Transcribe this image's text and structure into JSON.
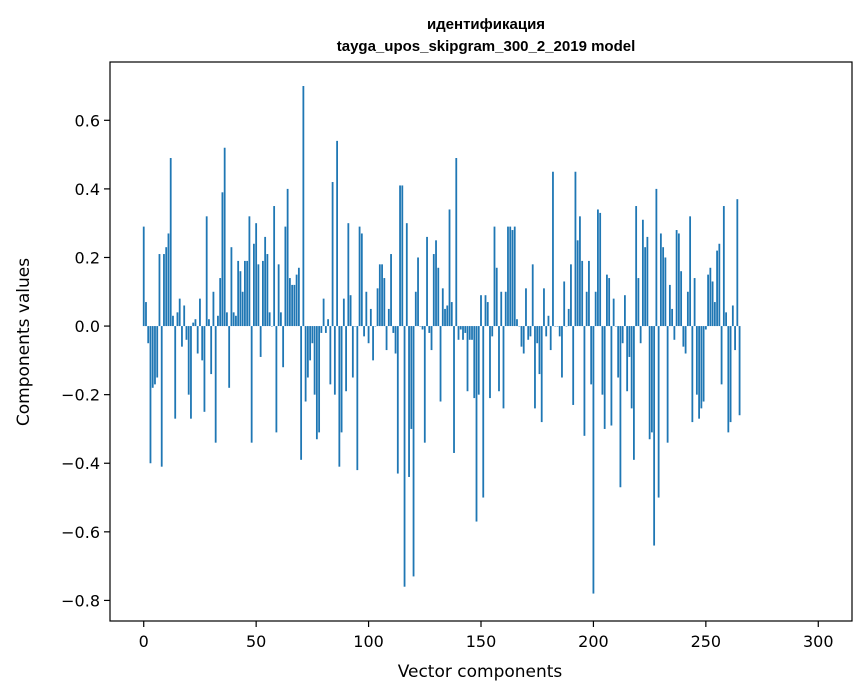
{
  "chart_data": {
    "type": "bar",
    "title": "идентификация",
    "subtitle": "tayga_upos_skipgram_300_2_2019 model",
    "xlabel": "Vector components",
    "ylabel": "Components values",
    "xlim": [
      -15,
      315
    ],
    "ylim": [
      -0.86,
      0.77
    ],
    "xticks": [
      0,
      50,
      100,
      150,
      200,
      250,
      300
    ],
    "xtick_labels": [
      "0",
      "50",
      "100",
      "150",
      "200",
      "250",
      "300"
    ],
    "yticks": [
      0.6,
      0.4,
      0.2,
      0.0,
      -0.2,
      -0.4,
      -0.6,
      -0.8
    ],
    "ytick_labels": [
      "0.6",
      "0.4",
      "0.2",
      "0.0",
      "−0.2",
      "−0.4",
      "−0.6",
      "−0.8"
    ],
    "grid": false,
    "bar_color": "#1f77b4",
    "x_start": 0,
    "values": [
      0.29,
      0.07,
      -0.05,
      -0.4,
      -0.18,
      -0.17,
      -0.15,
      0.21,
      -0.41,
      0.21,
      0.23,
      0.27,
      0.49,
      0.03,
      -0.27,
      0.04,
      0.08,
      -0.06,
      0.06,
      -0.04,
      -0.2,
      -0.27,
      0.01,
      0.02,
      -0.08,
      0.08,
      -0.1,
      -0.25,
      0.32,
      0.02,
      -0.14,
      0.1,
      -0.34,
      0.03,
      0.14,
      0.39,
      0.52,
      0.04,
      -0.18,
      0.23,
      0.04,
      0.03,
      0.19,
      0.16,
      0.1,
      0.19,
      0.19,
      0.32,
      -0.34,
      0.24,
      0.3,
      0.18,
      -0.09,
      0.19,
      0.26,
      0.21,
      0.04,
      0.0,
      0.35,
      -0.31,
      0.18,
      0.04,
      -0.12,
      0.29,
      0.4,
      0.14,
      0.12,
      0.12,
      0.15,
      0.17,
      -0.39,
      0.7,
      -0.22,
      -0.15,
      -0.1,
      -0.05,
      -0.2,
      -0.33,
      -0.31,
      -0.02,
      0.08,
      -0.02,
      0.02,
      -0.17,
      0.42,
      -0.2,
      0.54,
      -0.41,
      -0.31,
      0.08,
      -0.19,
      0.3,
      0.09,
      -0.15,
      0.0,
      -0.42,
      0.29,
      0.27,
      -0.03,
      0.1,
      -0.05,
      0.05,
      -0.1,
      0.0,
      0.11,
      0.18,
      0.18,
      0.14,
      -0.07,
      0.05,
      0.21,
      -0.02,
      -0.08,
      -0.43,
      0.41,
      0.41,
      -0.76,
      0.3,
      -0.44,
      -0.3,
      -0.73,
      0.1,
      0.2,
      0.0,
      -0.01,
      -0.34,
      0.26,
      -0.02,
      -0.07,
      0.21,
      0.25,
      0.17,
      -0.22,
      0.11,
      0.05,
      0.06,
      0.34,
      0.07,
      -0.37,
      0.49,
      -0.04,
      -0.01,
      -0.04,
      -0.02,
      -0.19,
      -0.04,
      -0.04,
      -0.21,
      -0.57,
      -0.2,
      0.09,
      -0.5,
      0.09,
      0.07,
      -0.21,
      -0.03,
      0.29,
      0.17,
      -0.19,
      0.1,
      -0.24,
      0.1,
      0.29,
      0.29,
      0.28,
      0.29,
      0.02,
      0.0,
      -0.06,
      -0.08,
      0.11,
      -0.04,
      -0.03,
      0.18,
      -0.24,
      -0.05,
      -0.14,
      -0.28,
      0.11,
      -0.03,
      0.03,
      -0.07,
      0.45,
      0.0,
      0.0,
      -0.03,
      -0.15,
      0.13,
      0.0,
      0.05,
      0.18,
      -0.23,
      0.45,
      0.25,
      0.32,
      0.19,
      -0.32,
      0.1,
      0.19,
      -0.17,
      -0.78,
      0.1,
      0.34,
      0.33,
      -0.2,
      -0.3,
      0.15,
      0.14,
      -0.29,
      0.08,
      0.0,
      -0.15,
      -0.47,
      -0.05,
      0.09,
      -0.19,
      -0.09,
      -0.24,
      -0.39,
      0.35,
      0.14,
      -0.05,
      0.31,
      0.23,
      0.26,
      -0.33,
      -0.31,
      -0.64,
      0.4,
      -0.5,
      0.27,
      0.23,
      0.2,
      -0.34,
      0.12,
      0.05,
      -0.04,
      0.28,
      0.27,
      0.16,
      -0.06,
      -0.08,
      0.1,
      0.32,
      -0.28,
      0.14,
      -0.2,
      -0.27,
      -0.24,
      -0.22,
      -0.01,
      0.15,
      0.17,
      0.13,
      0.07,
      0.22,
      0.24,
      -0.17,
      0.35,
      0.04,
      -0.31,
      -0.28,
      0.06,
      -0.07,
      0.37,
      -0.26
    ]
  }
}
